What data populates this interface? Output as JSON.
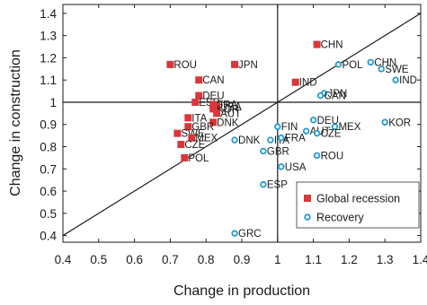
{
  "chart_data": {
    "type": "scatter",
    "xlabel": "Change in production",
    "ylabel": "Change in construction",
    "xlim": [
      0.4,
      1.4
    ],
    "ylim": [
      0.37,
      1.44
    ],
    "xticks": [
      "0.4",
      "0.5",
      "0.6",
      "0.7",
      "0.8",
      "0.9",
      "1",
      "1.1",
      "1.2",
      "1.3",
      "1.4"
    ],
    "yticks": [
      "0.4",
      "0.5",
      "0.6",
      "0.7",
      "0.8",
      "0.9",
      "1",
      "1.1",
      "1.2",
      "1.3",
      "1.4"
    ],
    "grid": false,
    "reference_lines": [
      "x = 1",
      "y = 1",
      "y = x"
    ],
    "legend_position": "bottom-right",
    "series": [
      {
        "name": "Global recession",
        "marker": "square",
        "color": "#d9373b",
        "points": [
          {
            "label": "CHN",
            "x": 1.11,
            "y": 1.26
          },
          {
            "label": "ROU",
            "x": 0.7,
            "y": 1.17
          },
          {
            "label": "JPN",
            "x": 0.88,
            "y": 1.17
          },
          {
            "label": "CAN",
            "x": 0.78,
            "y": 1.1
          },
          {
            "label": "IND",
            "x": 1.05,
            "y": 1.09
          },
          {
            "label": "DEU",
            "x": 0.78,
            "y": 1.03
          },
          {
            "label": "ESP",
            "x": 0.77,
            "y": 1.0
          },
          {
            "label": "FRA",
            "x": 0.82,
            "y": 0.99
          },
          {
            "label": "USA",
            "x": 0.83,
            "y": 0.98
          },
          {
            "label": "KOR",
            "x": 0.82,
            "y": 0.97
          },
          {
            "label": "AUT",
            "x": 0.83,
            "y": 0.95
          },
          {
            "label": "ITA",
            "x": 0.75,
            "y": 0.93
          },
          {
            "label": "DNK",
            "x": 0.82,
            "y": 0.91
          },
          {
            "label": "GBR",
            "x": 0.75,
            "y": 0.89
          },
          {
            "label": "SWE",
            "x": 0.72,
            "y": 0.86
          },
          {
            "label": "MEX",
            "x": 0.76,
            "y": 0.84
          },
          {
            "label": "CZE",
            "x": 0.73,
            "y": 0.81
          },
          {
            "label": "POL",
            "x": 0.74,
            "y": 0.75
          }
        ]
      },
      {
        "name": "Recovery",
        "marker": "circle",
        "color": "#1f9bd1",
        "points": [
          {
            "label": "POL",
            "x": 1.17,
            "y": 1.17
          },
          {
            "label": "CHN",
            "x": 1.26,
            "y": 1.18
          },
          {
            "label": "SWE",
            "x": 1.29,
            "y": 1.15
          },
          {
            "label": "IND",
            "x": 1.33,
            "y": 1.1
          },
          {
            "label": "JPN",
            "x": 1.13,
            "y": 1.04
          },
          {
            "label": "CAN",
            "x": 1.12,
            "y": 1.03
          },
          {
            "label": "DEU",
            "x": 1.1,
            "y": 0.92
          },
          {
            "label": "KOR",
            "x": 1.3,
            "y": 0.91
          },
          {
            "label": "MEX",
            "x": 1.16,
            "y": 0.89
          },
          {
            "label": "AUT",
            "x": 1.08,
            "y": 0.87
          },
          {
            "label": "CZE",
            "x": 1.11,
            "y": 0.86
          },
          {
            "label": "FIN",
            "x": 1.0,
            "y": 0.89
          },
          {
            "label": "DNK",
            "x": 0.88,
            "y": 0.83
          },
          {
            "label": "ITA",
            "x": 0.98,
            "y": 0.83
          },
          {
            "label": "FRA",
            "x": 1.01,
            "y": 0.84
          },
          {
            "label": "GBR",
            "x": 0.96,
            "y": 0.78
          },
          {
            "label": "ROU",
            "x": 1.11,
            "y": 0.76
          },
          {
            "label": "USA",
            "x": 1.01,
            "y": 0.71
          },
          {
            "label": "ESP",
            "x": 0.96,
            "y": 0.63
          },
          {
            "label": "GRC",
            "x": 0.88,
            "y": 0.41
          }
        ]
      }
    ]
  }
}
